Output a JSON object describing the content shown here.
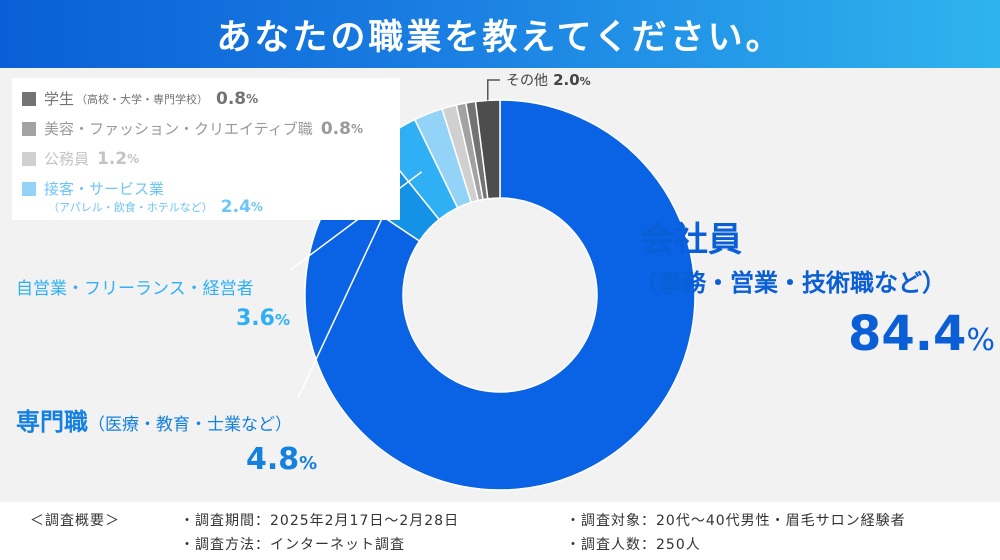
{
  "header": {
    "title": "あなたの職業を教えてください。"
  },
  "chart_data": {
    "type": "pie",
    "unit": "%",
    "slices": [
      {
        "label": "会社員",
        "sublabel": "（事務・営業・技術職など）",
        "value": 84.4,
        "display": "84.4",
        "color": "#0a63e4"
      },
      {
        "label": "専門職",
        "sublabel": "（医療・教育・士業など）",
        "value": 4.8,
        "display": "4.8",
        "color": "#1493e6"
      },
      {
        "label": "自営業・フリーランス・経営者",
        "sublabel": "",
        "value": 3.6,
        "display": "3.6",
        "color": "#2fb0f4"
      },
      {
        "label": "接客・サービス業",
        "sublabel": "（アパレル・飲食・ホテルなど）",
        "value": 2.4,
        "display": "2.4",
        "color": "#93d3f8"
      },
      {
        "label": "公務員",
        "sublabel": "",
        "value": 1.2,
        "display": "1.2",
        "color": "#d0d0d0"
      },
      {
        "label": "美容・ファッション・クリエイティブ職",
        "sublabel": "",
        "value": 0.8,
        "display": "0.8",
        "color": "#a2a2a2"
      },
      {
        "label": "学生",
        "sublabel": "（高校・大学・専門学校）",
        "value": 0.8,
        "display": "0.8",
        "color": "#737373"
      },
      {
        "label": "その他",
        "sublabel": "",
        "value": 2.0,
        "display": "2.0",
        "color": "#4d4d4d"
      }
    ]
  },
  "footer": {
    "heading": "＜調査概要＞",
    "period": "・調査期間：2025年2月17日～2月28日",
    "target": "・調査対象：20代～40代男性・眉毛サロン経験者",
    "method": "・調査方法：インターネット調査",
    "count": "・調査人数：250人"
  }
}
